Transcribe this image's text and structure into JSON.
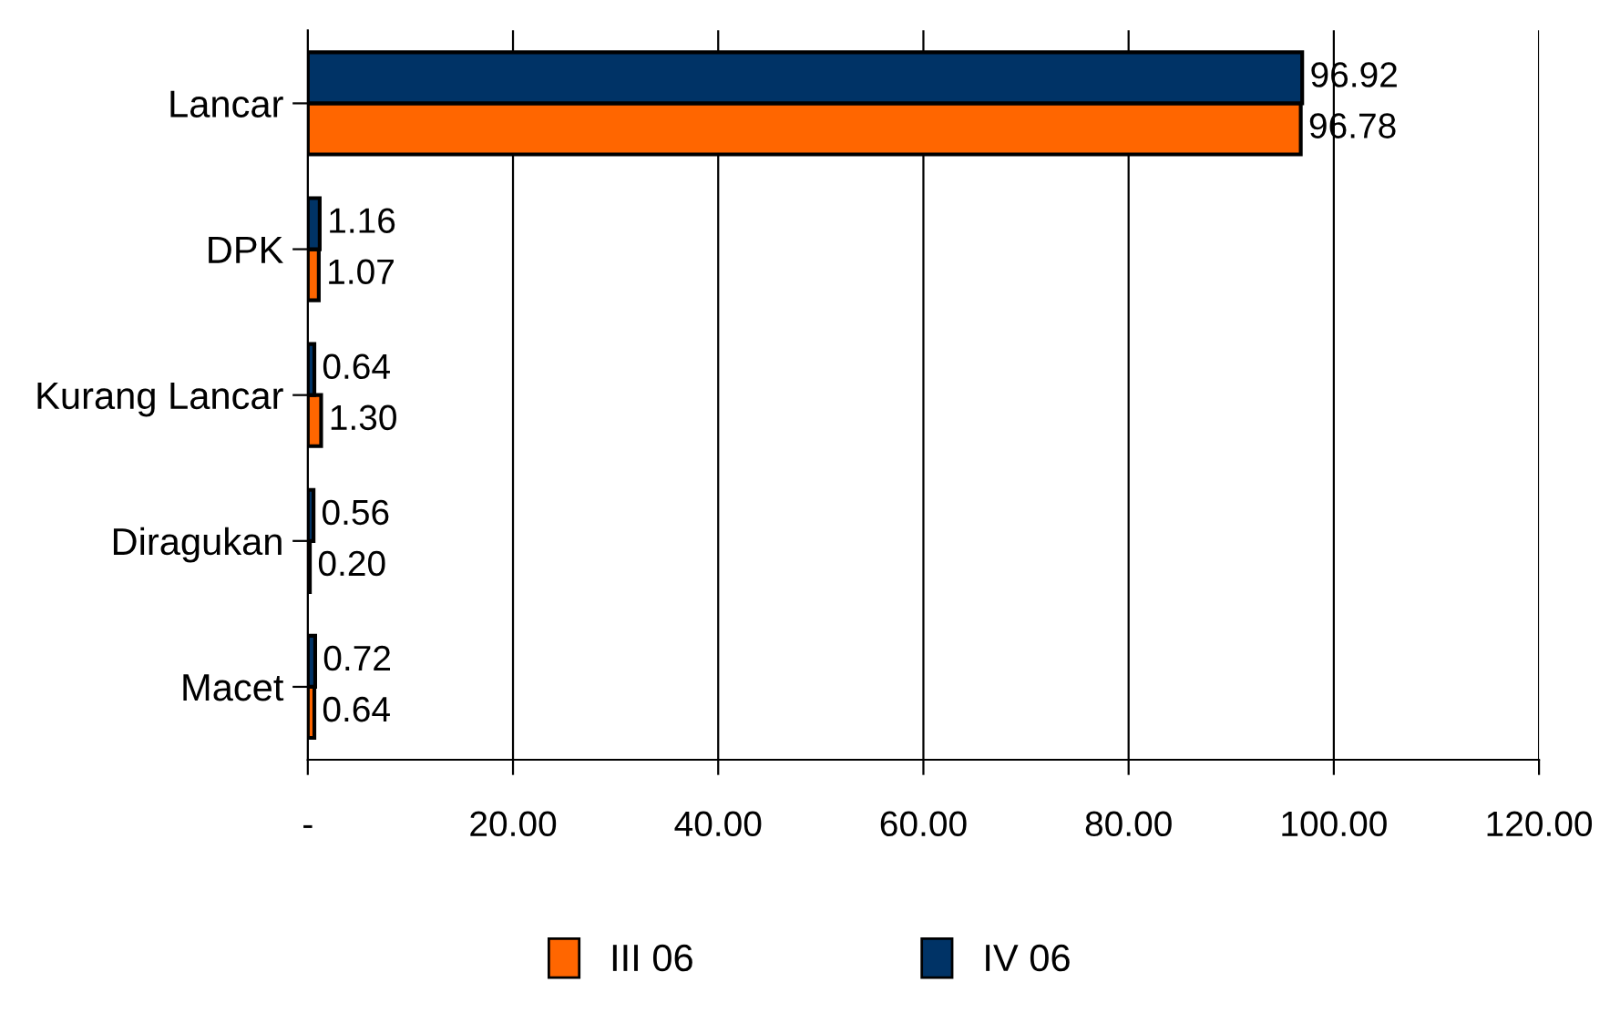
{
  "chart_data": {
    "type": "bar",
    "orientation": "horizontal",
    "categories": [
      "Lancar",
      "DPK",
      "Kurang Lancar",
      "Diragukan",
      "Macet"
    ],
    "series": [
      {
        "name": "III 06",
        "color": "#ff6600",
        "values": [
          96.78,
          1.07,
          1.3,
          0.2,
          0.64
        ],
        "value_labels": [
          "96.78",
          "1.07",
          "1.30",
          "0.20",
          "0.64"
        ]
      },
      {
        "name": "IV 06",
        "color": "#003366",
        "values": [
          96.92,
          1.16,
          0.64,
          0.56,
          0.72
        ],
        "value_labels": [
          "96.92",
          "1.16",
          "0.64",
          "0.56",
          "0.72"
        ]
      }
    ],
    "xlim": [
      0,
      120
    ],
    "xticks": [
      {
        "value": 0,
        "label": "-"
      },
      {
        "value": 20,
        "label": "20.00"
      },
      {
        "value": 40,
        "label": "40.00"
      },
      {
        "value": 60,
        "label": "60.00"
      },
      {
        "value": 80,
        "label": "80.00"
      },
      {
        "value": 100,
        "label": "100.00"
      },
      {
        "value": 120,
        "label": "120.00"
      }
    ],
    "grid": "x",
    "legend": "bottom"
  }
}
